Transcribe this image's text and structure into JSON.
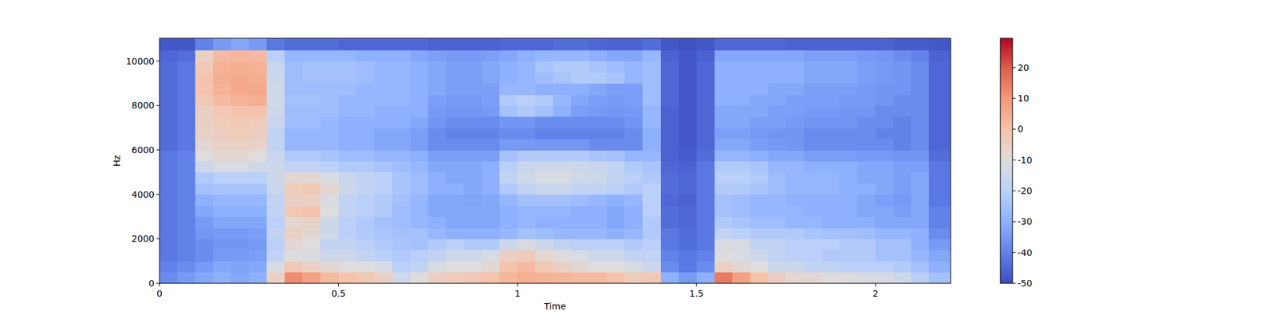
{
  "chart_data": {
    "type": "heatmap",
    "x_label": "Time",
    "y_label": "Hz",
    "xlim": [
      0,
      2.21
    ],
    "ylim": [
      0,
      11025
    ],
    "xticks": [
      0,
      0.5,
      1,
      1.5,
      2
    ],
    "yticks": [
      0,
      2000,
      4000,
      6000,
      8000,
      10000
    ],
    "x_edges": [
      0,
      0.05,
      0.1,
      0.15,
      0.2,
      0.25,
      0.3,
      0.35,
      0.4,
      0.45,
      0.5,
      0.55,
      0.6,
      0.65,
      0.7,
      0.75,
      0.8,
      0.85,
      0.9,
      0.95,
      1.0,
      1.05,
      1.1,
      1.15,
      1.2,
      1.25,
      1.3,
      1.35,
      1.4,
      1.45,
      1.5,
      1.55,
      1.6,
      1.65,
      1.7,
      1.75,
      1.8,
      1.85,
      1.9,
      1.95,
      2.0,
      2.05,
      2.1,
      2.15,
      2.21
    ],
    "y_edges": [
      0,
      500,
      1000,
      1500,
      2000,
      2500,
      3000,
      3500,
      4000,
      4500,
      5000,
      5500,
      6000,
      6500,
      7000,
      7500,
      8000,
      8500,
      9000,
      9500,
      10000,
      10500,
      11025
    ],
    "cells": [
      [
        -38,
        -35,
        -32,
        -30,
        -32,
        -30,
        -5,
        12,
        8,
        2,
        0,
        -2,
        -5,
        -15,
        -10,
        -5,
        -3,
        -2,
        0,
        3,
        5,
        4,
        3,
        2,
        2,
        0,
        -3,
        -2,
        -30,
        -35,
        -30,
        15,
        8,
        0,
        -5,
        -8,
        -8,
        -10,
        -10,
        -12,
        -12,
        -15,
        -20,
        -25
      ],
      [
        -40,
        -38,
        -35,
        -32,
        -33,
        -32,
        -12,
        -2,
        -5,
        -8,
        -10,
        -10,
        -12,
        -20,
        -18,
        -12,
        -10,
        -10,
        -8,
        0,
        2,
        -2,
        -5,
        -8,
        -10,
        -10,
        -12,
        -15,
        -38,
        -42,
        -38,
        -5,
        -8,
        -10,
        -15,
        -15,
        -18,
        -18,
        -20,
        -20,
        -20,
        -22,
        -25,
        -30
      ],
      [
        -42,
        -40,
        -38,
        -35,
        -35,
        -34,
        -18,
        -10,
        -12,
        -15,
        -15,
        -18,
        -20,
        -22,
        -20,
        -18,
        -15,
        -15,
        -12,
        -5,
        -3,
        -8,
        -10,
        -12,
        -15,
        -15,
        -18,
        -18,
        -40,
        -42,
        -40,
        -10,
        -12,
        -15,
        -18,
        -20,
        -20,
        -22,
        -22,
        -22,
        -25,
        -25,
        -28,
        -32
      ],
      [
        -42,
        -40,
        -38,
        -36,
        -36,
        -35,
        -20,
        -8,
        -10,
        -18,
        -18,
        -20,
        -22,
        -24,
        -25,
        -22,
        -20,
        -22,
        -22,
        -15,
        -12,
        -15,
        -18,
        -20,
        -20,
        -20,
        -22,
        -20,
        -42,
        -44,
        -42,
        -12,
        -12,
        -18,
        -18,
        -20,
        -20,
        -20,
        -22,
        -22,
        -25,
        -25,
        -30,
        -35
      ],
      [
        -42,
        -40,
        -36,
        -35,
        -35,
        -34,
        -18,
        -5,
        -8,
        -15,
        -20,
        -22,
        -24,
        -25,
        -25,
        -28,
        -30,
        -30,
        -30,
        -28,
        -25,
        -26,
        -28,
        -28,
        -28,
        -30,
        -28,
        -22,
        -42,
        -44,
        -42,
        -18,
        -20,
        -22,
        -22,
        -22,
        -24,
        -25,
        -25,
        -26,
        -28,
        -28,
        -30,
        -38
      ],
      [
        -42,
        -40,
        -35,
        -32,
        -32,
        -32,
        -20,
        -8,
        -6,
        -15,
        -20,
        -22,
        -25,
        -26,
        -28,
        -30,
        -32,
        -32,
        -32,
        -30,
        -28,
        -30,
        -30,
        -30,
        -30,
        -32,
        -30,
        -22,
        -44,
        -45,
        -42,
        -22,
        -24,
        -26,
        -26,
        -28,
        -28,
        -30,
        -30,
        -30,
        -32,
        -32,
        -32,
        -40
      ],
      [
        -42,
        -40,
        -32,
        -30,
        -30,
        -30,
        -18,
        -2,
        0,
        -10,
        -18,
        -20,
        -22,
        -26,
        -28,
        -32,
        -32,
        -32,
        -32,
        -30,
        -28,
        -28,
        -28,
        -30,
        -30,
        -32,
        -30,
        -20,
        -44,
        -45,
        -42,
        -25,
        -26,
        -28,
        -28,
        -28,
        -30,
        -30,
        -30,
        -32,
        -32,
        -34,
        -32,
        -40
      ],
      [
        -42,
        -40,
        -30,
        -28,
        -28,
        -28,
        -18,
        -5,
        -5,
        -12,
        -18,
        -20,
        -22,
        -25,
        -28,
        -32,
        -32,
        -33,
        -32,
        -28,
        -25,
        -25,
        -25,
        -26,
        -28,
        -30,
        -28,
        -20,
        -45,
        -46,
        -42,
        -25,
        -26,
        -28,
        -28,
        -30,
        -30,
        -30,
        -30,
        -32,
        -34,
        -35,
        -32,
        -42
      ],
      [
        -42,
        -40,
        -25,
        -24,
        -24,
        -24,
        -16,
        -3,
        -2,
        -8,
        -15,
        -18,
        -20,
        -24,
        -26,
        -30,
        -30,
        -32,
        -30,
        -22,
        -18,
        -16,
        -16,
        -18,
        -18,
        -20,
        -22,
        -20,
        -44,
        -45,
        -42,
        -22,
        -22,
        -24,
        -26,
        -28,
        -28,
        -28,
        -30,
        -30,
        -32,
        -34,
        -32,
        -42
      ],
      [
        -42,
        -40,
        -22,
        -20,
        -20,
        -20,
        -15,
        -8,
        -8,
        -12,
        -16,
        -18,
        -20,
        -24,
        -26,
        -30,
        -32,
        -32,
        -30,
        -18,
        -14,
        -12,
        -12,
        -14,
        -15,
        -18,
        -20,
        -22,
        -44,
        -45,
        -42,
        -20,
        -20,
        -22,
        -26,
        -28,
        -28,
        -28,
        -30,
        -32,
        -32,
        -34,
        -32,
        -42
      ],
      [
        -42,
        -40,
        -15,
        -12,
        -12,
        -14,
        -15,
        -18,
        -18,
        -20,
        -22,
        -22,
        -24,
        -26,
        -28,
        -32,
        -32,
        -32,
        -30,
        -20,
        -16,
        -14,
        -14,
        -15,
        -16,
        -18,
        -22,
        -24,
        -45,
        -46,
        -42,
        -22,
        -22,
        -24,
        -28,
        -28,
        -30,
        -30,
        -30,
        -32,
        -32,
        -34,
        -34,
        -42
      ],
      [
        -42,
        -40,
        -10,
        -8,
        -8,
        -10,
        -16,
        -22,
        -22,
        -24,
        -26,
        -26,
        -28,
        -28,
        -30,
        -34,
        -34,
        -34,
        -34,
        -25,
        -22,
        -22,
        -22,
        -22,
        -24,
        -25,
        -28,
        -28,
        -46,
        -47,
        -44,
        -28,
        -28,
        -30,
        -32,
        -32,
        -34,
        -34,
        -34,
        -35,
        -35,
        -36,
        -36,
        -44
      ],
      [
        -44,
        -42,
        -8,
        -5,
        -5,
        -6,
        -18,
        -28,
        -28,
        -28,
        -30,
        -30,
        -32,
        -32,
        -34,
        -38,
        -38,
        -38,
        -38,
        -35,
        -35,
        -36,
        -36,
        -36,
        -38,
        -38,
        -38,
        -30,
        -46,
        -48,
        -45,
        -32,
        -32,
        -34,
        -35,
        -36,
        -38,
        -38,
        -38,
        -38,
        -38,
        -40,
        -38,
        -45
      ],
      [
        -44,
        -42,
        -6,
        -4,
        -3,
        -4,
        -18,
        -28,
        -28,
        -28,
        -30,
        -30,
        -32,
        -32,
        -34,
        -38,
        -40,
        -40,
        -40,
        -38,
        -38,
        -40,
        -40,
        -40,
        -40,
        -40,
        -38,
        -30,
        -46,
        -48,
        -45,
        -34,
        -34,
        -35,
        -36,
        -36,
        -38,
        -38,
        -38,
        -38,
        -40,
        -40,
        -38,
        -45
      ],
      [
        -44,
        -42,
        -5,
        -3,
        -2,
        -3,
        -16,
        -26,
        -26,
        -28,
        -30,
        -30,
        -30,
        -30,
        -32,
        -36,
        -38,
        -38,
        -38,
        -36,
        -36,
        -38,
        -38,
        -38,
        -38,
        -38,
        -36,
        -28,
        -46,
        -48,
        -45,
        -32,
        -32,
        -34,
        -34,
        -35,
        -36,
        -36,
        -36,
        -38,
        -38,
        -40,
        -38,
        -45
      ],
      [
        -44,
        -42,
        -5,
        -2,
        0,
        0,
        -15,
        -26,
        -26,
        -26,
        -28,
        -28,
        -30,
        -30,
        -30,
        -35,
        -36,
        -36,
        -35,
        -25,
        -22,
        -25,
        -30,
        -34,
        -35,
        -36,
        -35,
        -28,
        -46,
        -48,
        -45,
        -32,
        -32,
        -32,
        -34,
        -34,
        -35,
        -35,
        -36,
        -36,
        -38,
        -38,
        -38,
        -45
      ],
      [
        -44,
        -42,
        -2,
        2,
        4,
        5,
        -14,
        -25,
        -25,
        -26,
        -28,
        -28,
        -28,
        -28,
        -30,
        -34,
        -35,
        -35,
        -34,
        -22,
        -20,
        -22,
        -28,
        -32,
        -34,
        -35,
        -34,
        -26,
        -45,
        -48,
        -45,
        -30,
        -30,
        -32,
        -32,
        -34,
        -34,
        -34,
        -35,
        -35,
        -36,
        -38,
        -38,
        -45
      ],
      [
        -44,
        -42,
        0,
        4,
        6,
        6,
        -14,
        -26,
        -26,
        -26,
        -26,
        -28,
        -28,
        -28,
        -30,
        -32,
        -34,
        -34,
        -34,
        -28,
        -28,
        -30,
        -30,
        -30,
        -32,
        -34,
        -34,
        -26,
        -45,
        -48,
        -45,
        -30,
        -30,
        -30,
        -32,
        -32,
        -34,
        -34,
        -34,
        -35,
        -36,
        -36,
        -38,
        -45
      ],
      [
        -44,
        -42,
        0,
        5,
        6,
        5,
        -15,
        -26,
        -25,
        -25,
        -25,
        -26,
        -28,
        -28,
        -30,
        -32,
        -34,
        -34,
        -32,
        -30,
        -28,
        -26,
        -24,
        -22,
        -22,
        -24,
        -28,
        -26,
        -45,
        -48,
        -45,
        -30,
        -30,
        -30,
        -30,
        -30,
        -32,
        -32,
        -32,
        -34,
        -35,
        -36,
        -38,
        -45
      ],
      [
        -44,
        -42,
        -2,
        4,
        5,
        4,
        -16,
        -26,
        -25,
        -25,
        -25,
        -26,
        -28,
        -28,
        -30,
        -32,
        -34,
        -34,
        -32,
        -30,
        -28,
        -24,
        -22,
        -22,
        -24,
        -26,
        -28,
        -26,
        -45,
        -48,
        -45,
        -30,
        -30,
        -30,
        -30,
        -30,
        -32,
        -32,
        -32,
        -34,
        -35,
        -36,
        -38,
        -45
      ],
      [
        -45,
        -44,
        -5,
        2,
        3,
        2,
        -20,
        -28,
        -28,
        -28,
        -28,
        -30,
        -30,
        -30,
        -32,
        -34,
        -35,
        -35,
        -34,
        -32,
        -30,
        -28,
        -28,
        -28,
        -30,
        -32,
        -32,
        -28,
        -46,
        -48,
        -46,
        -32,
        -32,
        -32,
        -32,
        -32,
        -34,
        -34,
        -34,
        -35,
        -36,
        -38,
        -40,
        -46
      ],
      [
        -48,
        -48,
        -40,
        -35,
        -32,
        -35,
        -42,
        -44,
        -44,
        -44,
        -45,
        -45,
        -45,
        -45,
        -45,
        -46,
        -46,
        -46,
        -46,
        -45,
        -45,
        -45,
        -44,
        -44,
        -45,
        -46,
        -46,
        -44,
        -48,
        -49,
        -48,
        -45,
        -45,
        -45,
        -45,
        -46,
        -46,
        -46,
        -46,
        -46,
        -46,
        -47,
        -47,
        -48
      ]
    ],
    "color_range": [
      -50,
      29.5
    ],
    "color_ticks": [
      -50,
      -40,
      -30,
      -20,
      -10,
      0,
      10,
      20
    ]
  }
}
